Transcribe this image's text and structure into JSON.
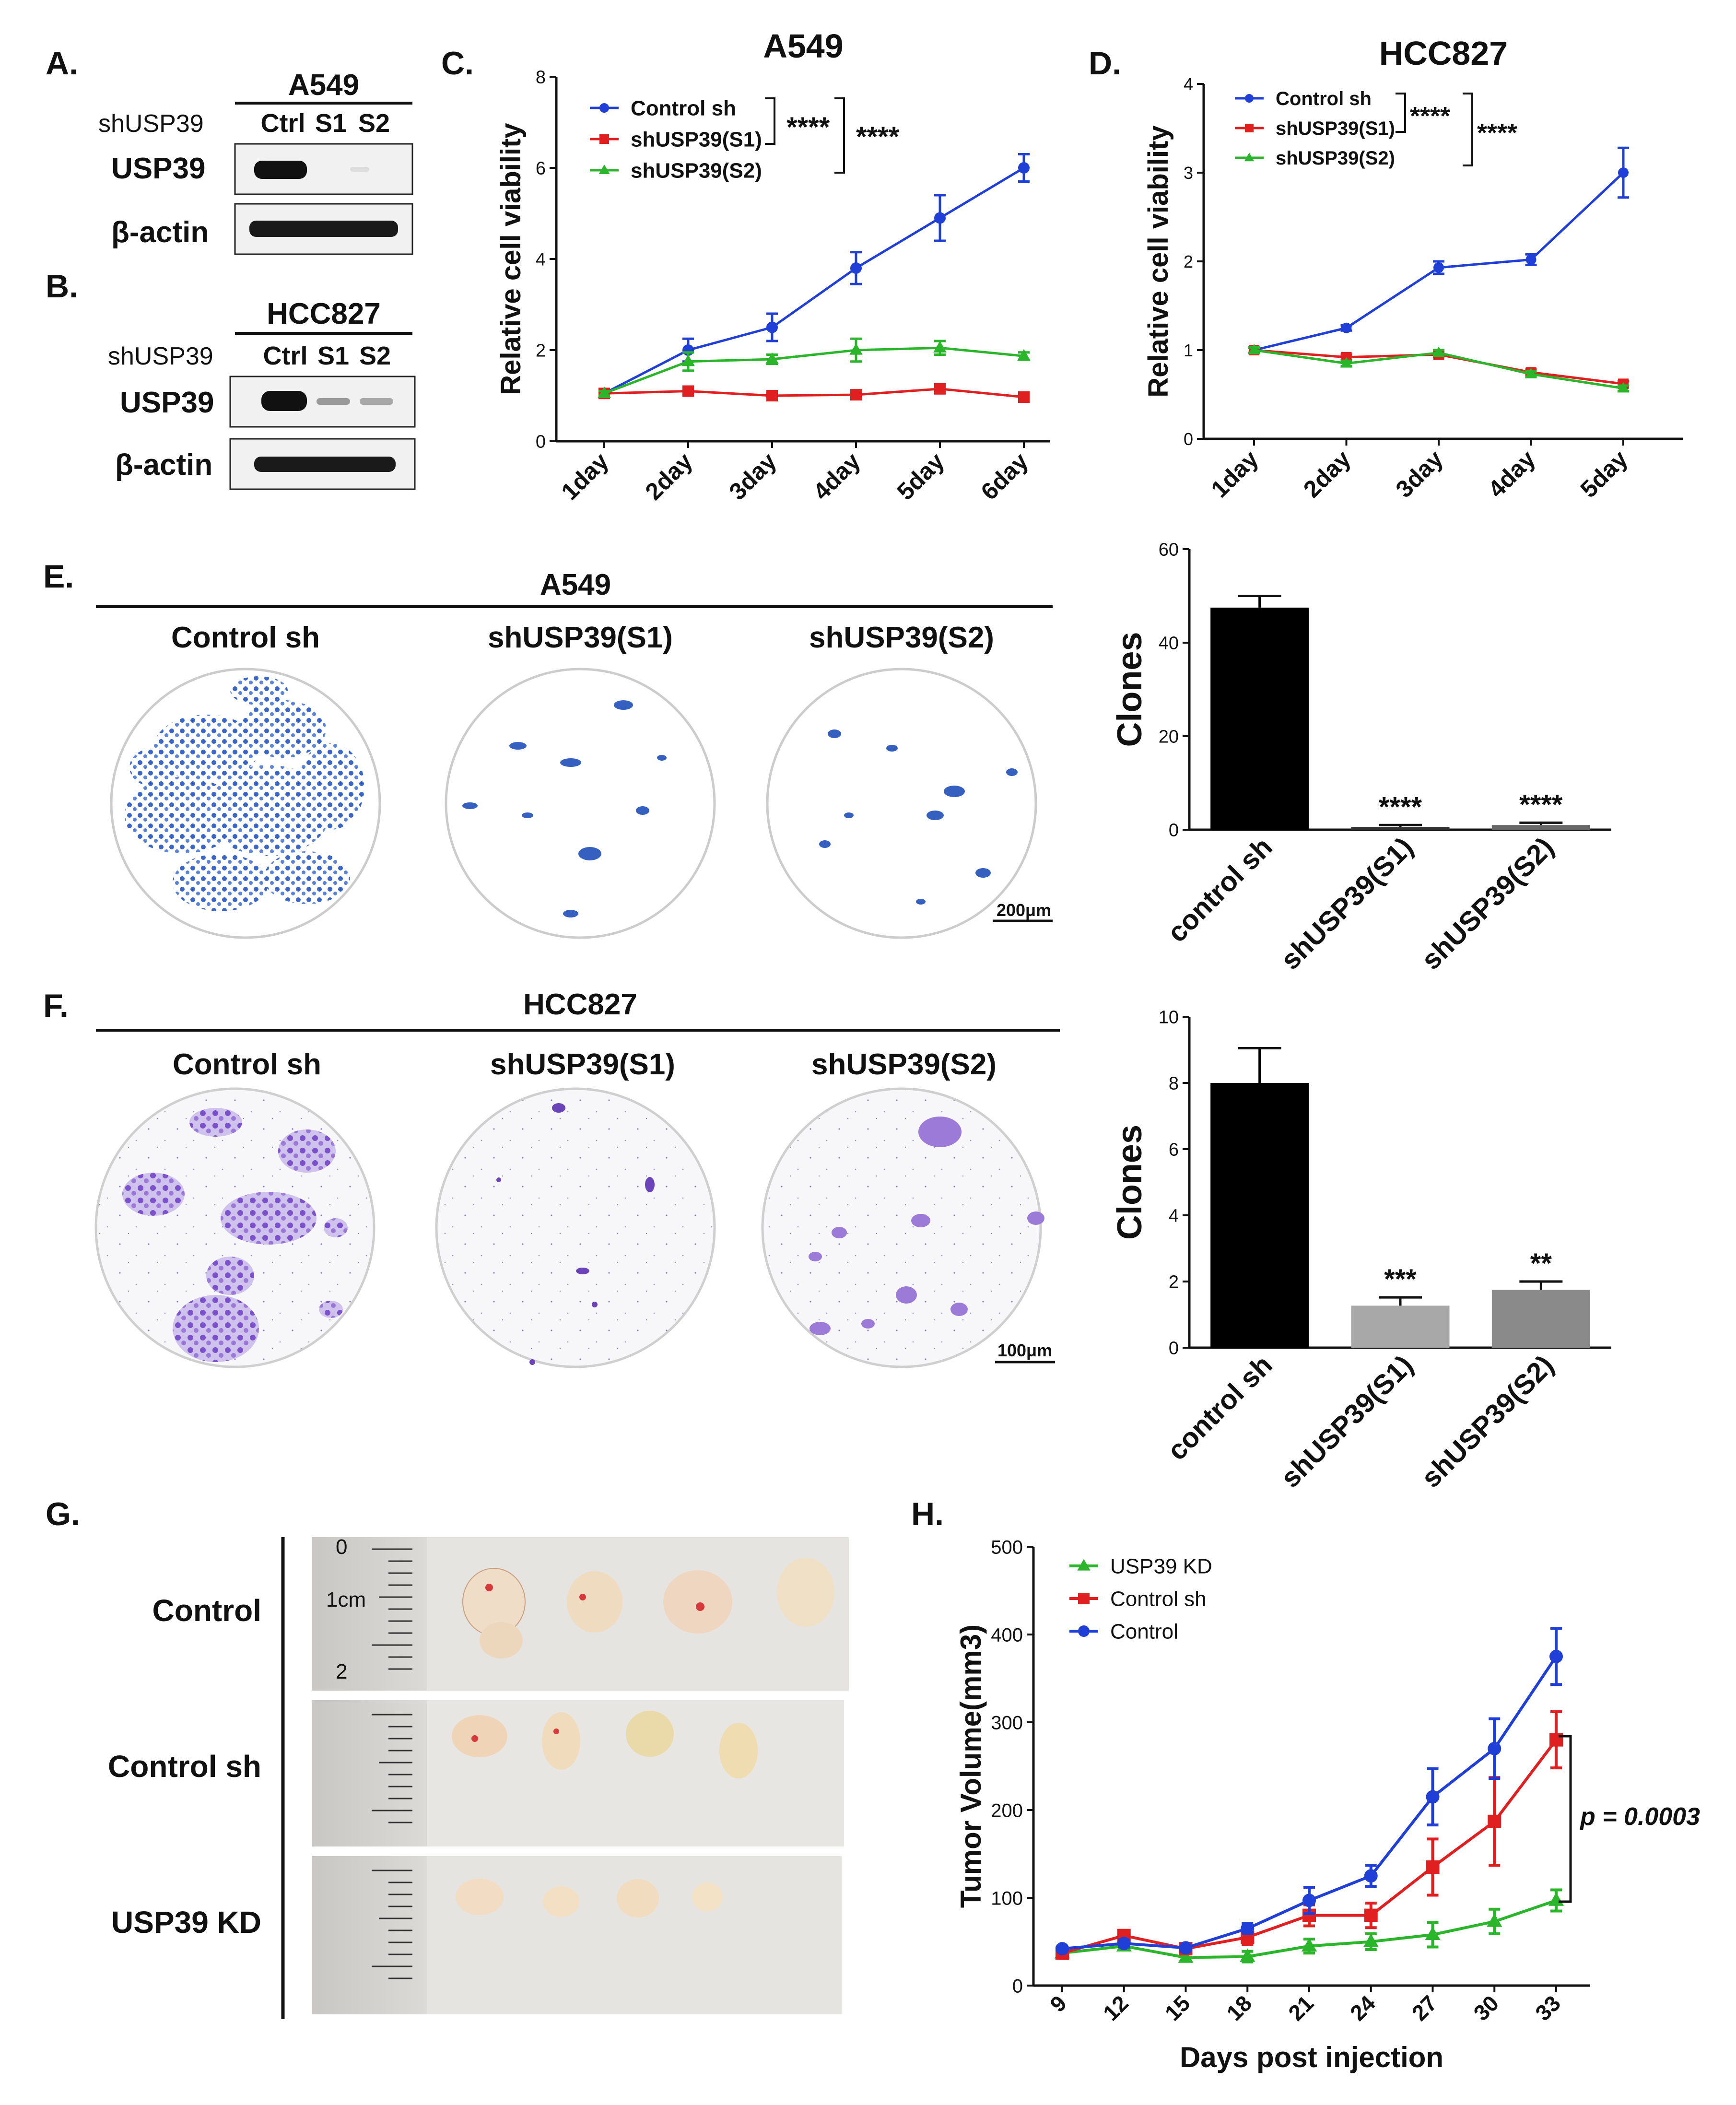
{
  "panels": {
    "a": "A.",
    "b": "B.",
    "c": "C.",
    "d": "D.",
    "e": "E.",
    "f": "F.",
    "g": "G.",
    "h": "H."
  },
  "western": {
    "a": {
      "cell": "A549",
      "row_label": "shUSP39",
      "lanes": [
        "Ctrl",
        "S1",
        "S2"
      ],
      "bands": [
        "USP39",
        "β-actin"
      ]
    },
    "b": {
      "cell": "HCC827",
      "row_label": "shUSP39",
      "lanes": [
        "Ctrl",
        "S1",
        "S2"
      ],
      "bands": [
        "USP39",
        "β-actin"
      ]
    }
  },
  "colony": {
    "e": {
      "cell": "A549",
      "groups": [
        "Control sh",
        "shUSP39(S1)",
        "shUSP39(S2)"
      ],
      "scale": "200μm"
    },
    "f": {
      "cell": "HCC827",
      "groups": [
        "Control sh",
        "shUSP39(S1)",
        "shUSP39(S2)"
      ],
      "scale": "100μm"
    }
  },
  "tumor_photo": {
    "rows": [
      "Control",
      "Control sh",
      "USP39 KD"
    ],
    "ruler_marks": [
      "0",
      "1cm",
      "2"
    ]
  },
  "chart_data": [
    {
      "id": "C",
      "type": "line",
      "title": "A549",
      "ylabel": "Relative cell viability",
      "xlabel": "",
      "categories": [
        "1day",
        "2day",
        "3day",
        "4day",
        "5day",
        "6day"
      ],
      "ylim": [
        0,
        8
      ],
      "yticks": [
        "0",
        "2",
        "4",
        "6",
        "8"
      ],
      "series": [
        {
          "name": "Control sh",
          "color": "#1f3fd6",
          "marker": "circle",
          "values": [
            1.05,
            2.0,
            2.5,
            3.8,
            4.9,
            6.0
          ],
          "err": [
            0.05,
            0.25,
            0.3,
            0.35,
            0.5,
            0.3
          ]
        },
        {
          "name": "shUSP39(S1)",
          "color": "#e02020",
          "marker": "square",
          "values": [
            1.05,
            1.1,
            1.0,
            1.02,
            1.15,
            0.97
          ],
          "err": [
            0.05,
            0.08,
            0.07,
            0.06,
            0.08,
            0.1
          ]
        },
        {
          "name": "shUSP39(S2)",
          "color": "#2ab52a",
          "marker": "triangle",
          "values": [
            1.05,
            1.75,
            1.8,
            2.0,
            2.05,
            1.87
          ],
          "err": [
            0.05,
            0.2,
            0.1,
            0.25,
            0.15,
            0.08
          ]
        }
      ],
      "significance": [
        "****",
        "****"
      ]
    },
    {
      "id": "D",
      "type": "line",
      "title": "HCC827",
      "ylabel": "Relative cell viability",
      "xlabel": "",
      "categories": [
        "1day",
        "2day",
        "3day",
        "4day",
        "5day"
      ],
      "ylim": [
        0,
        4
      ],
      "yticks": [
        "0",
        "1",
        "2",
        "3",
        "4"
      ],
      "series": [
        {
          "name": "Control sh",
          "color": "#1f3fd6",
          "marker": "circle",
          "values": [
            1.0,
            1.25,
            1.93,
            2.02,
            3.0
          ],
          "err": [
            0.03,
            0.03,
            0.07,
            0.06,
            0.28
          ]
        },
        {
          "name": "shUSP39(S1)",
          "color": "#e02020",
          "marker": "square",
          "values": [
            1.0,
            0.92,
            0.95,
            0.75,
            0.62
          ],
          "err": [
            0.03,
            0.03,
            0.03,
            0.03,
            0.03
          ]
        },
        {
          "name": "shUSP39(S2)",
          "color": "#2ab52a",
          "marker": "triangle",
          "values": [
            1.0,
            0.85,
            0.97,
            0.73,
            0.57
          ],
          "err": [
            0.03,
            0.03,
            0.03,
            0.03,
            0.03
          ]
        }
      ],
      "significance": [
        "****",
        "****"
      ]
    },
    {
      "id": "E",
      "type": "bar",
      "title": "",
      "ylabel": "Clones",
      "xlabel": "",
      "categories": [
        "control sh",
        "shUSP39(S1)",
        "shUSP39(S2)"
      ],
      "values": [
        47.5,
        0.6,
        1.0
      ],
      "err": [
        2.5,
        0.4,
        0.5
      ],
      "ylim": [
        0,
        60
      ],
      "yticks": [
        "0",
        "20",
        "40",
        "60"
      ],
      "colors": [
        "#000000",
        "#333333",
        "#666666"
      ],
      "annotations": [
        "",
        "****",
        "****"
      ]
    },
    {
      "id": "F",
      "type": "bar",
      "title": "",
      "ylabel": "Clones",
      "xlabel": "",
      "categories": [
        "control sh",
        "shUSP39(S1)",
        "shUSP39(S2)"
      ],
      "values": [
        8.0,
        1.27,
        1.75
      ],
      "err": [
        1.05,
        0.25,
        0.25
      ],
      "ylim": [
        0,
        10
      ],
      "yticks": [
        "0",
        "2",
        "4",
        "6",
        "8",
        "10"
      ],
      "colors": [
        "#000000",
        "#a8a8a8",
        "#8a8a8a"
      ],
      "annotations": [
        "",
        "***",
        "**"
      ]
    },
    {
      "id": "H",
      "type": "line",
      "title": "",
      "ylabel": "Tumor Volume(mm3)",
      "xlabel": "Days post injection",
      "categories": [
        "9",
        "12",
        "15",
        "18",
        "21",
        "24",
        "27",
        "30",
        "33"
      ],
      "ylim": [
        0,
        500
      ],
      "yticks": [
        "0",
        "100",
        "200",
        "300",
        "400",
        "500"
      ],
      "series": [
        {
          "name": "USP39 KD",
          "color": "#2ab52a",
          "marker": "triangle",
          "values": [
            37,
            45,
            32,
            33,
            45,
            50,
            58,
            73,
            97
          ],
          "err": [
            3,
            4,
            4,
            6,
            8,
            9,
            14,
            14,
            12
          ]
        },
        {
          "name": "Control sh",
          "color": "#e02020",
          "marker": "square",
          "values": [
            37,
            57,
            42,
            55,
            80,
            80,
            135,
            187,
            280
          ],
          "err": [
            3,
            5,
            4,
            8,
            12,
            14,
            32,
            50,
            32
          ]
        },
        {
          "name": "Control",
          "color": "#1f3fd6",
          "marker": "circle",
          "values": [
            42,
            48,
            43,
            65,
            97,
            125,
            215,
            270,
            375
          ],
          "err": [
            3,
            4,
            4,
            6,
            15,
            12,
            32,
            34,
            32
          ]
        }
      ],
      "pvalue": "p = 0.0003"
    }
  ]
}
